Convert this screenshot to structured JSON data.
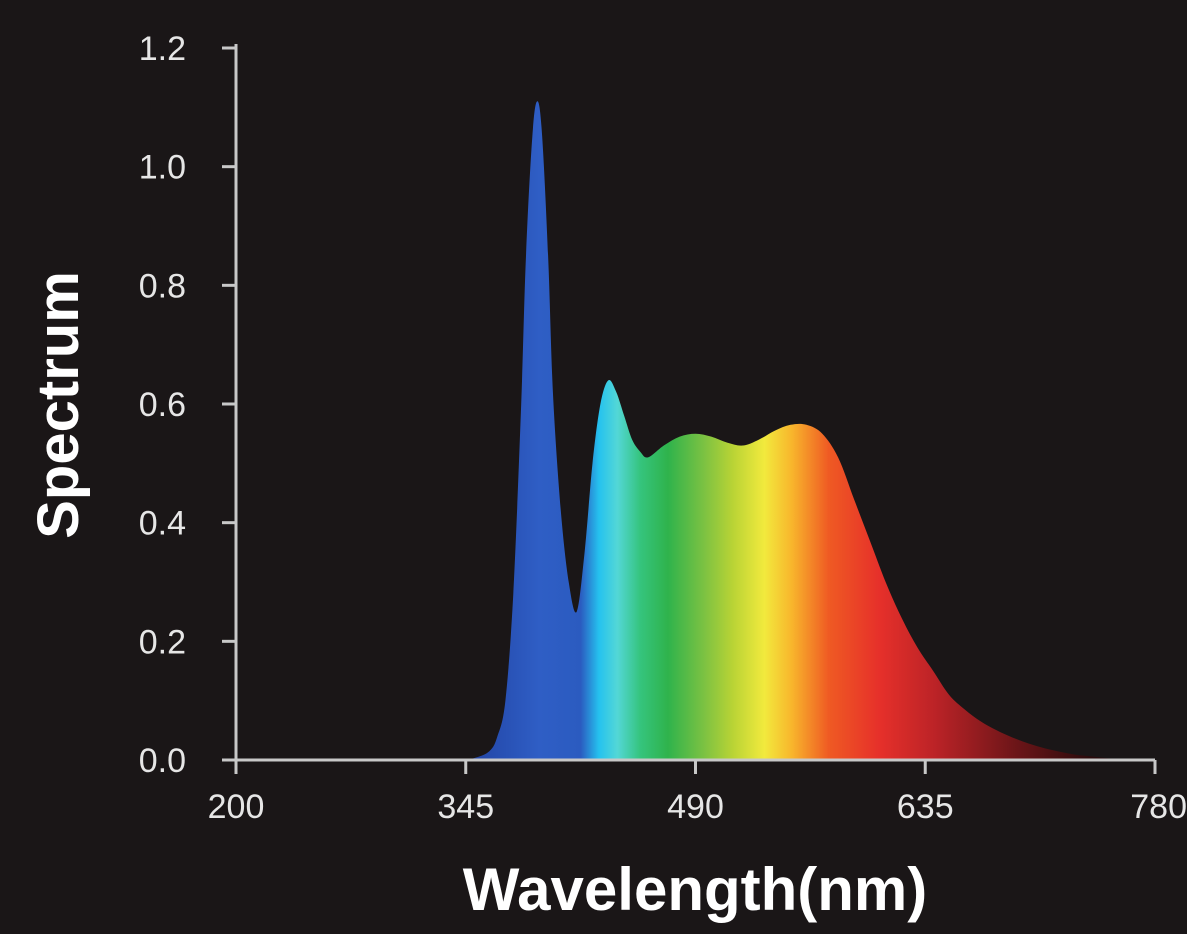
{
  "chart_data": {
    "type": "area",
    "xlabel": "Wavelength(nm)",
    "ylabel": "Spectrum",
    "xlim": [
      200,
      780
    ],
    "ylim": [
      0,
      1.2
    ],
    "x_ticks": [
      "200",
      "345",
      "490",
      "635",
      "780"
    ],
    "y_ticks": [
      "0.0",
      "0.2",
      "0.4",
      "0.6",
      "0.8",
      "1.0",
      "1.2"
    ],
    "grid": false,
    "series": [
      {
        "x": [
          340,
          350,
          360,
          365,
          370,
          375,
          380,
          383,
          387,
          390,
          393,
          397,
          400,
          405,
          410,
          415,
          420,
          425,
          430,
          435,
          440,
          445,
          450,
          455,
          460,
          470,
          480,
          490,
          500,
          510,
          520,
          530,
          540,
          550,
          560,
          570,
          580,
          590,
          600,
          610,
          620,
          630,
          640,
          650,
          660,
          670,
          680,
          690,
          700,
          710,
          720,
          730,
          740,
          750,
          760,
          770,
          780
        ],
        "y": [
          0.0,
          0.003,
          0.015,
          0.04,
          0.1,
          0.28,
          0.6,
          0.85,
          1.05,
          1.11,
          1.06,
          0.85,
          0.62,
          0.42,
          0.3,
          0.25,
          0.35,
          0.5,
          0.6,
          0.64,
          0.62,
          0.58,
          0.54,
          0.52,
          0.51,
          0.53,
          0.545,
          0.55,
          0.545,
          0.535,
          0.53,
          0.54,
          0.555,
          0.565,
          0.565,
          0.55,
          0.51,
          0.44,
          0.37,
          0.3,
          0.24,
          0.19,
          0.15,
          0.11,
          0.085,
          0.065,
          0.05,
          0.038,
          0.028,
          0.02,
          0.014,
          0.009,
          0.006,
          0.003,
          0.002,
          0.001,
          0.0
        ]
      }
    ]
  }
}
